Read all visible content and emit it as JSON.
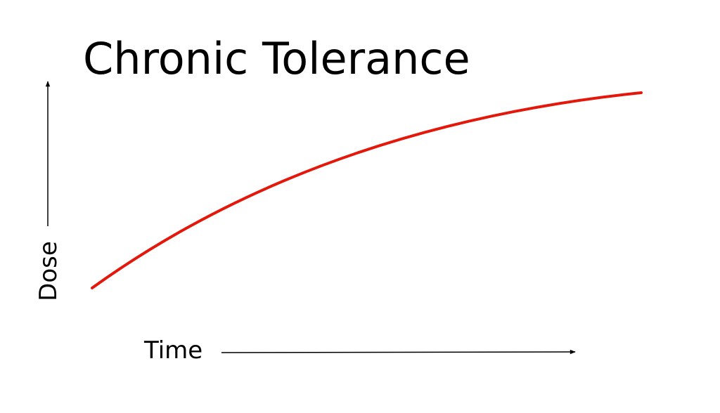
{
  "title": "Chronic Tolerance",
  "y_axis_label": "Dose",
  "x_axis_label": "Time"
}
